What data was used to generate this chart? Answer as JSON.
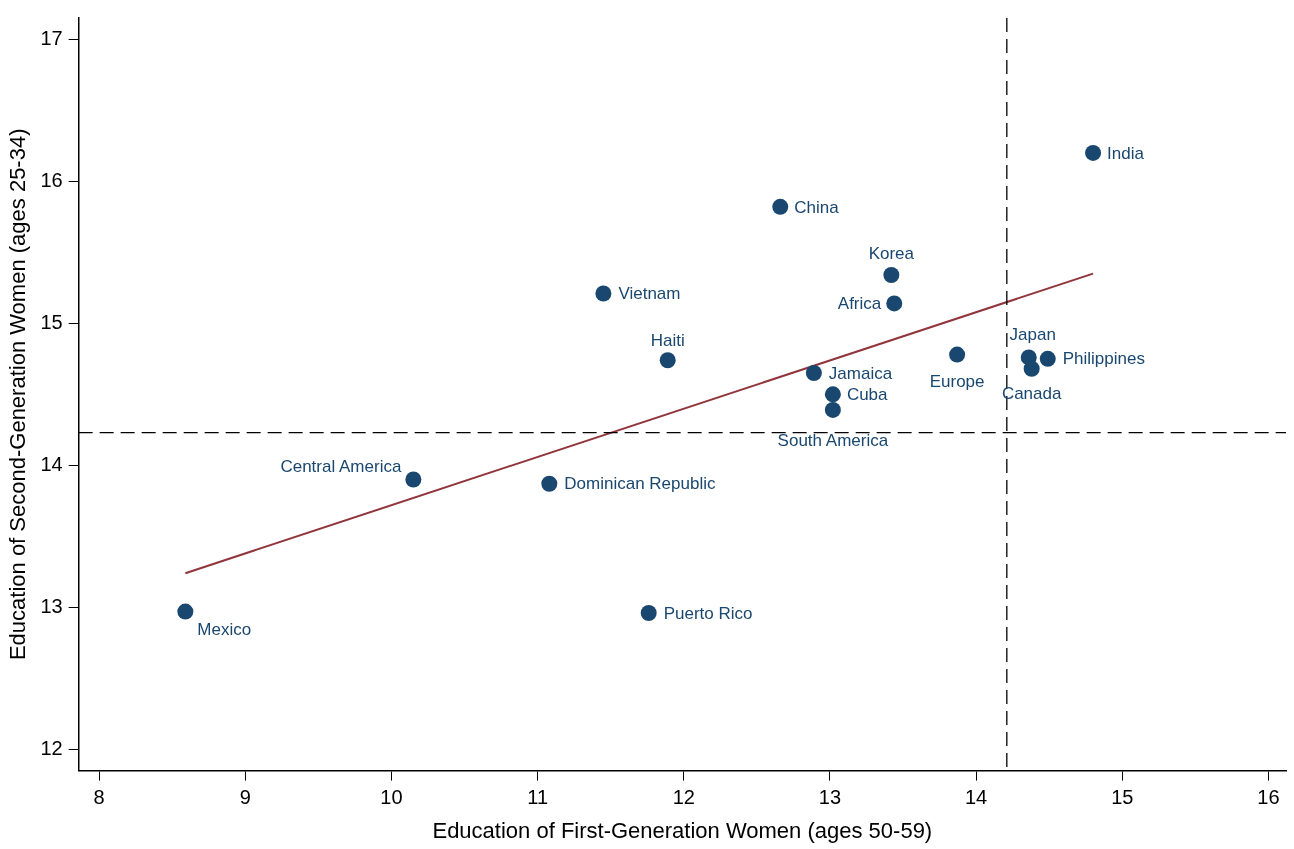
{
  "chart_data": {
    "type": "scatter",
    "xlabel": "Education of First-Generation Women (ages 50-59)",
    "ylabel": "Education of Second-Generation Women (ages 25-34)",
    "xlim": [
      7.86,
      16.12
    ],
    "xticks": [
      8,
      9,
      10,
      11,
      12,
      13,
      14,
      15,
      16
    ],
    "ylim": [
      11.85,
      17.15
    ],
    "yticks": [
      12,
      13,
      14,
      15,
      16,
      17
    ],
    "grid": false,
    "legend": false,
    "series": [
      {
        "marker": "circle",
        "color": "#1a476f",
        "x": [
          8.59,
          10.15,
          11.08,
          11.76,
          11.45,
          11.89,
          12.66,
          12.89,
          13.02,
          13.02,
          13.42,
          13.44,
          13.87,
          14.36,
          14.38,
          14.49,
          14.8
        ],
        "values": [
          12.97,
          13.9,
          13.87,
          12.96,
          15.21,
          14.74,
          15.82,
          14.65,
          14.5,
          14.39,
          15.34,
          15.14,
          14.78,
          14.76,
          14.68,
          14.75,
          16.2
        ]
      },
      {
        "type": "line",
        "color": "#90353b",
        "line_style": "solid",
        "x": [
          8.59,
          14.8
        ],
        "values": [
          13.24,
          15.35
        ]
      }
    ],
    "ref_lines": [
      {
        "axis": "x",
        "value": 14.21,
        "color": "#000000",
        "line_style": "dashed"
      },
      {
        "axis": "y",
        "value": 14.23,
        "color": "#000000",
        "line_style": "dashed"
      }
    ],
    "annotations": [
      {
        "text": "Mexico",
        "x": 8.59,
        "y": 12.97
      },
      {
        "text": "Central America",
        "x": 10.15,
        "y": 13.9
      },
      {
        "text": "Dominican Republic",
        "x": 11.08,
        "y": 13.87
      },
      {
        "text": "Puerto Rico",
        "x": 11.76,
        "y": 12.96
      },
      {
        "text": "Vietnam",
        "x": 11.45,
        "y": 15.21
      },
      {
        "text": "Haiti",
        "x": 11.89,
        "y": 14.74
      },
      {
        "text": "China",
        "x": 12.66,
        "y": 15.82
      },
      {
        "text": "Jamaica",
        "x": 12.89,
        "y": 14.65
      },
      {
        "text": "Cuba",
        "x": 13.02,
        "y": 14.5
      },
      {
        "text": "South America",
        "x": 13.02,
        "y": 14.39
      },
      {
        "text": "Korea",
        "x": 13.42,
        "y": 15.34
      },
      {
        "text": "Africa",
        "x": 13.44,
        "y": 15.14
      },
      {
        "text": "Europe",
        "x": 13.87,
        "y": 14.78
      },
      {
        "text": "Japan",
        "x": 14.36,
        "y": 14.76
      },
      {
        "text": "Canada",
        "x": 14.38,
        "y": 14.68
      },
      {
        "text": "Philippines",
        "x": 14.49,
        "y": 14.75
      },
      {
        "text": "India",
        "x": 14.8,
        "y": 16.2
      }
    ]
  }
}
